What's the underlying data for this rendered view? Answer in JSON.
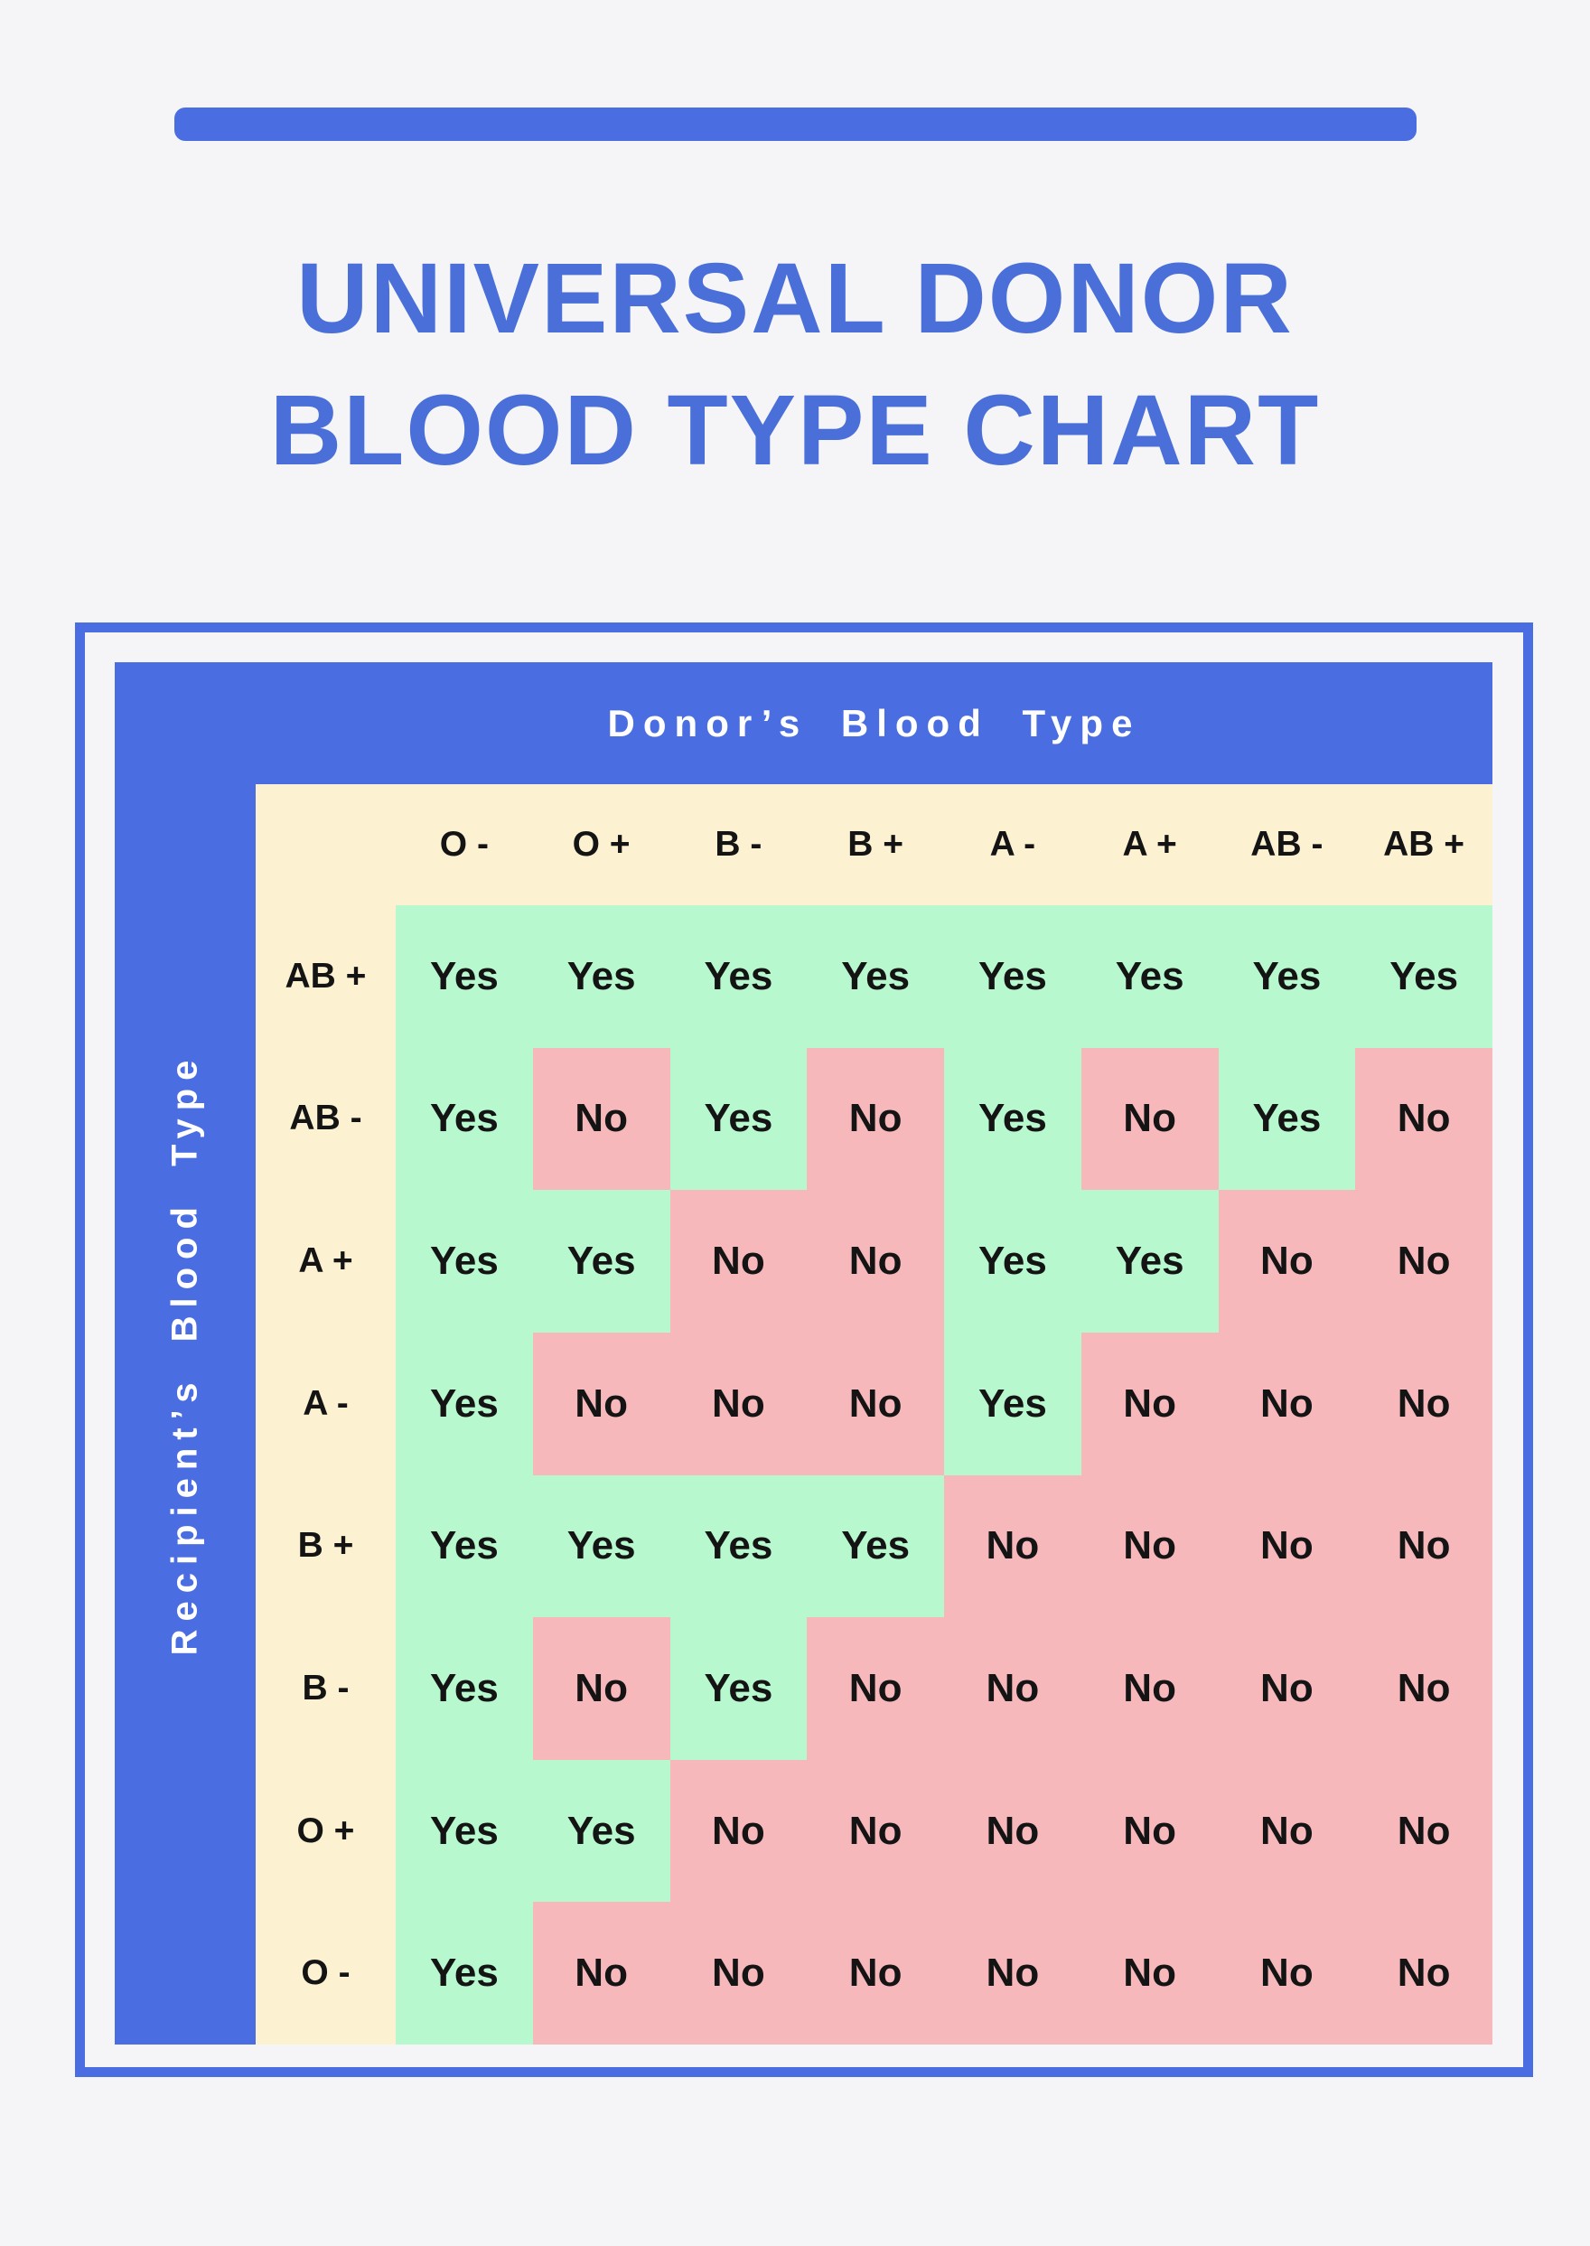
{
  "title": {
    "line1": "UNIVERSAL DONOR",
    "line2": "BLOOD TYPE CHART"
  },
  "table": {
    "column_axis_label": "Donor’s Blood Type",
    "row_axis_label": "Recipient’s Blood Type"
  },
  "colors": {
    "accent_blue": "#4a6ee1",
    "title_blue": "#4a6fd9",
    "cream": "#fcf2d2",
    "yes_green": "#b7f8cf",
    "no_pink": "#f7b8bb",
    "page_bg": "#f5f5f7",
    "cell_text": "#141414",
    "axis_text": "#ffffff"
  },
  "chart_data": {
    "type": "table",
    "title": "Universal Donor Blood Type Chart",
    "column_axis": "Donor’s Blood Type",
    "row_axis": "Recipient’s Blood Type",
    "columns": [
      "O -",
      "O +",
      "B -",
      "B +",
      "A -",
      "A +",
      "AB -",
      "AB +"
    ],
    "rows": [
      "AB +",
      "AB -",
      "A +",
      "A -",
      "B +",
      "B -",
      "O +",
      "O -"
    ],
    "values": [
      [
        "Yes",
        "Yes",
        "Yes",
        "Yes",
        "Yes",
        "Yes",
        "Yes",
        "Yes"
      ],
      [
        "Yes",
        "No",
        "Yes",
        "No",
        "Yes",
        "No",
        "Yes",
        "No"
      ],
      [
        "Yes",
        "Yes",
        "No",
        "No",
        "Yes",
        "Yes",
        "No",
        "No"
      ],
      [
        "Yes",
        "No",
        "No",
        "No",
        "Yes",
        "No",
        "No",
        "No"
      ],
      [
        "Yes",
        "Yes",
        "Yes",
        "Yes",
        "No",
        "No",
        "No",
        "No"
      ],
      [
        "Yes",
        "No",
        "Yes",
        "No",
        "No",
        "No",
        "No",
        "No"
      ],
      [
        "Yes",
        "Yes",
        "No",
        "No",
        "No",
        "No",
        "No",
        "No"
      ],
      [
        "Yes",
        "No",
        "No",
        "No",
        "No",
        "No",
        "No",
        "No"
      ]
    ],
    "yes_color": "#b7f8cf",
    "no_color": "#f7b8bb"
  }
}
